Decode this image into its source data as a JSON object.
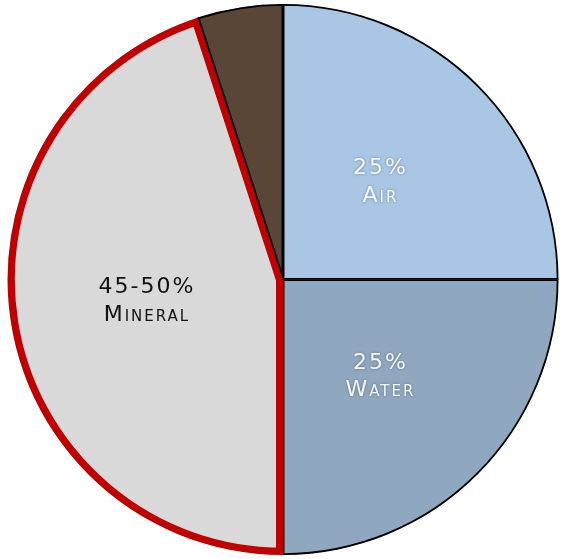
{
  "chart_data": {
    "type": "pie",
    "categories": [
      "Air",
      "Water",
      "Mineral",
      null
    ],
    "values": [
      25,
      25,
      45,
      5
    ],
    "value_labels": [
      "25%",
      "25%",
      "45-50%",
      null
    ],
    "colors": [
      "#a9c6e4",
      "#8fa8bf",
      "#d9d9d9",
      "#5a4636"
    ],
    "data_labels": true
  }
}
